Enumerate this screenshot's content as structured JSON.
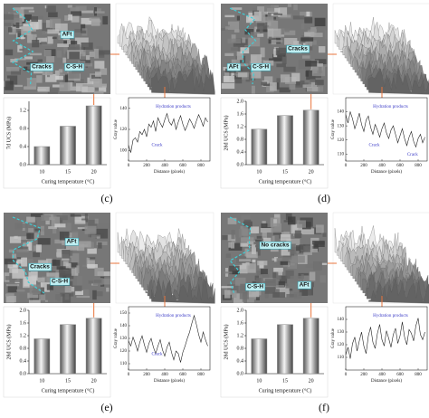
{
  "panels": [
    {
      "label": "(c)",
      "annotations": [
        "AFt",
        "C-S-H",
        "Cracks"
      ]
    },
    {
      "label": "(d)",
      "annotations": [
        "Cracks",
        "AFt",
        "C-S-H"
      ]
    },
    {
      "label": "(e)",
      "annotations": [
        "AFt",
        "Cracks",
        "C-S-H"
      ]
    },
    {
      "label": "(f)",
      "annotations": [
        "No cracks",
        "C-S-H",
        "AFt"
      ]
    }
  ],
  "chart_data": [
    {
      "type": "bar",
      "ylabel": "7d UCS (MPa)",
      "xlabel": "Curing temperature (°C)",
      "categories": [
        "10",
        "15",
        "20"
      ],
      "values": [
        0.4,
        0.85,
        1.3
      ],
      "color": "#8a8a8a",
      "ylim": [
        0,
        1.4
      ],
      "yticks": [
        {
          "value": 0,
          "label": "0.0"
        },
        0.4,
        0.8,
        1.2
      ]
    },
    {
      "type": "line",
      "ylabel": "Gray value",
      "xlabel": "Distance (pixels)",
      "annotations": [
        "Hydration products",
        "Crack"
      ],
      "color": "#222222",
      "x": [
        0,
        25,
        50,
        75,
        100,
        125,
        150,
        175,
        200,
        225,
        250,
        275,
        300,
        325,
        350,
        375,
        400,
        425,
        450,
        475,
        500,
        525,
        550,
        575,
        600,
        625,
        650,
        675,
        700,
        725,
        750,
        775,
        800,
        825,
        850,
        875
      ],
      "values": [
        105,
        98,
        110,
        112,
        108,
        118,
        115,
        120,
        113,
        125,
        122,
        128,
        118,
        131,
        126,
        122,
        129,
        135,
        127,
        124,
        130,
        120,
        127,
        133,
        125,
        119,
        124,
        130,
        126,
        121,
        128,
        134,
        129,
        123,
        131,
        127
      ],
      "xlim": [
        0,
        900
      ],
      "xticks": [
        0,
        200,
        400,
        600,
        800
      ],
      "ylim": [
        90,
        150
      ],
      "yticks": [
        100,
        120,
        140
      ]
    },
    {
      "type": "bar",
      "ylabel": "28d UCS (MPa)",
      "xlabel": "Curing temperature (°C)",
      "categories": [
        "10",
        "15",
        "20"
      ],
      "values": [
        1.12,
        1.55,
        1.72
      ],
      "color": "#8a8a8a",
      "ylim": [
        0,
        2.0
      ],
      "yticks": [
        {
          "value": 0,
          "label": "0.0"
        },
        0.4,
        0.8,
        1.2,
        1.6,
        {
          "value": 2,
          "label": "2.0"
        }
      ]
    },
    {
      "type": "line",
      "ylabel": "Gray value",
      "xlabel": "Distance (pixels)",
      "annotations": [
        "Hydration products",
        "Crack",
        "Crack"
      ],
      "color": "#222222",
      "x": [
        0,
        25,
        50,
        75,
        100,
        125,
        150,
        175,
        200,
        225,
        250,
        275,
        300,
        325,
        350,
        375,
        400,
        425,
        450,
        475,
        500,
        525,
        550,
        575,
        600,
        625,
        650,
        675,
        700,
        725,
        750,
        775,
        800,
        825,
        850,
        875
      ],
      "values": [
        138,
        132,
        140,
        135,
        128,
        133,
        139,
        131,
        126,
        134,
        137,
        129,
        124,
        131,
        127,
        122,
        128,
        132,
        125,
        121,
        127,
        130,
        124,
        118,
        123,
        128,
        121,
        116,
        122,
        126,
        119,
        115,
        121,
        124,
        118,
        122
      ],
      "xlim": [
        0,
        900
      ],
      "xticks": [
        0,
        200,
        400,
        600,
        800
      ],
      "ylim": [
        105,
        150
      ],
      "yticks": [
        110,
        120,
        130,
        140
      ]
    },
    {
      "type": "bar",
      "ylabel": "28d UCS (MPa)",
      "xlabel": "Curing temperature (°C)",
      "categories": [
        "10",
        "15",
        "20"
      ],
      "values": [
        1.1,
        1.55,
        1.75
      ],
      "color": "#8a8a8a",
      "ylim": [
        0,
        2.0
      ],
      "yticks": [
        {
          "value": 0,
          "label": "0.0"
        },
        0.4,
        0.8,
        1.2,
        1.6,
        {
          "value": 2,
          "label": "2.0"
        }
      ]
    },
    {
      "type": "line",
      "ylabel": "Gray value",
      "xlabel": "Distance (pixels)",
      "annotations": [
        "Hydration products",
        "Crack"
      ],
      "color": "#222222",
      "x": [
        0,
        25,
        50,
        75,
        100,
        125,
        150,
        175,
        200,
        225,
        250,
        275,
        300,
        325,
        350,
        375,
        400,
        425,
        450,
        475,
        500,
        525,
        550,
        575,
        600,
        625,
        650,
        675,
        700,
        725,
        750,
        775,
        800,
        825,
        850,
        875
      ],
      "values": [
        128,
        124,
        131,
        126,
        120,
        127,
        132,
        125,
        119,
        126,
        130,
        123,
        118,
        124,
        129,
        121,
        116,
        123,
        127,
        119,
        113,
        120,
        118,
        111,
        119,
        124,
        130,
        135,
        142,
        148,
        141,
        133,
        127,
        135,
        129,
        124
      ],
      "xlim": [
        0,
        900
      ],
      "xticks": [
        0,
        200,
        400,
        600,
        800
      ],
      "ylim": [
        105,
        155
      ],
      "yticks": [
        110,
        120,
        130,
        140,
        150
      ]
    },
    {
      "type": "bar",
      "ylabel": "28d UCS (MPa)",
      "xlabel": "Curing temperature (°C)",
      "categories": [
        "10",
        "15",
        "20"
      ],
      "values": [
        1.1,
        1.55,
        1.75
      ],
      "color": "#8a8a8a",
      "ylim": [
        0,
        2.0
      ],
      "yticks": [
        {
          "value": 0,
          "label": "0.0"
        },
        0.4,
        0.8,
        1.2,
        1.6,
        {
          "value": 2,
          "label": "2.0"
        }
      ]
    },
    {
      "type": "line",
      "ylabel": "Gray value",
      "xlabel": "Distance (pixels)",
      "annotations": [
        "Hydration products"
      ],
      "color": "#222222",
      "x": [
        0,
        25,
        50,
        75,
        100,
        125,
        150,
        175,
        200,
        225,
        250,
        275,
        300,
        325,
        350,
        375,
        400,
        425,
        450,
        475,
        500,
        525,
        550,
        575,
        600,
        625,
        650,
        675,
        700,
        725,
        750,
        775,
        800,
        825,
        850,
        875
      ],
      "values": [
        112,
        118,
        109,
        121,
        126,
        115,
        123,
        130,
        119,
        113,
        127,
        134,
        122,
        117,
        129,
        136,
        124,
        119,
        131,
        125,
        118,
        128,
        133,
        121,
        127,
        138,
        126,
        120,
        132,
        129,
        123,
        135,
        141,
        128,
        124,
        130
      ],
      "xlim": [
        0,
        900
      ],
      "xticks": [
        0,
        200,
        400,
        600,
        800
      ],
      "ylim": [
        100,
        150
      ],
      "yticks": [
        110,
        120,
        130,
        140
      ]
    }
  ]
}
